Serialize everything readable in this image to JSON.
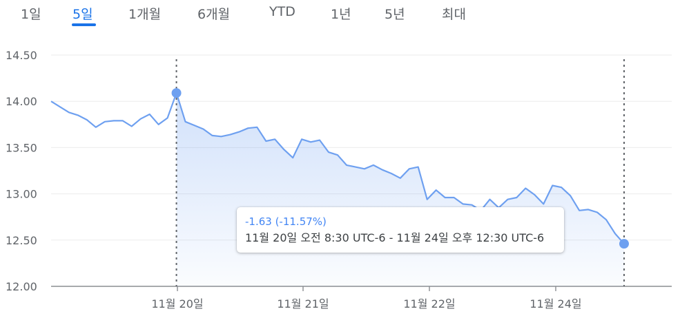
{
  "tabs": [
    {
      "label": "1일",
      "active": false
    },
    {
      "label": "5일",
      "active": true
    },
    {
      "label": "1개월",
      "active": false
    },
    {
      "label": "6개월",
      "active": false
    },
    {
      "label": "YTD",
      "active": false
    },
    {
      "label": "1년",
      "active": false
    },
    {
      "label": "5년",
      "active": false
    },
    {
      "label": "최대",
      "active": false
    }
  ],
  "tooltip": {
    "change": "-1.63 (-11.57%)",
    "range": "11월 20일 오전 8:30 UTC-6 - 11월 24일 오후 12:30 UTC-6"
  },
  "colors": {
    "line": "#6ea0f0",
    "accent": "#1a73e8",
    "marker": "#6ea0f0"
  },
  "chart_data": {
    "type": "area",
    "ylim": [
      12.0,
      14.5
    ],
    "y_ticks": [
      "14.50",
      "14.00",
      "13.50",
      "13.00",
      "12.50",
      "12.00"
    ],
    "x_ticks": [
      "11월 20일",
      "11월 21일",
      "11월 22일",
      "11월 24일"
    ],
    "grid": true,
    "series": [
      {
        "values": [
          14.0,
          13.94,
          13.88,
          13.85,
          13.8,
          13.72,
          13.78,
          13.79,
          13.79,
          13.73,
          13.81,
          13.86,
          13.75,
          13.82,
          14.09,
          13.78,
          13.74,
          13.7,
          13.63,
          13.62,
          13.64,
          13.67,
          13.71,
          13.72,
          13.57,
          13.59,
          13.48,
          13.39,
          13.59,
          13.56,
          13.58,
          13.45,
          13.42,
          13.31,
          13.29,
          13.27,
          13.31,
          13.26,
          13.22,
          13.17,
          13.27,
          13.29,
          12.94,
          13.04,
          12.96,
          12.96,
          12.89,
          12.88,
          12.82,
          12.94,
          12.85,
          12.94,
          12.96,
          13.06,
          12.99,
          12.89,
          13.09,
          13.07,
          12.98,
          12.82,
          12.83,
          12.8,
          12.72,
          12.57,
          12.46
        ]
      }
    ],
    "selection": {
      "start_index": 14,
      "end_index": 64
    }
  }
}
